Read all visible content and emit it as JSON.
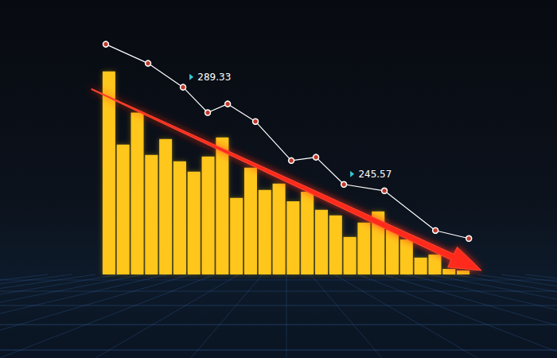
{
  "chart_data": {
    "type": "bar",
    "categories": [
      null,
      null,
      null,
      null,
      null,
      null,
      null,
      null,
      null,
      null,
      null,
      null,
      null,
      null,
      null,
      null,
      null,
      null,
      null,
      null,
      null,
      null,
      null,
      null,
      null,
      null
    ],
    "xlim": [
      0,
      26
    ],
    "ylim": [
      205,
      315
    ],
    "tick_labels": false,
    "grid": false,
    "series": [
      {
        "type": "bar",
        "color": "#ffc61a",
        "values": [
          296.5,
          263.5,
          277.9,
          258.8,
          266.0,
          256.0,
          251.3,
          258.1,
          266.7,
          239.5,
          253.1,
          243.1,
          245.9,
          238.0,
          242.3,
          234.1,
          231.6,
          221.9,
          228.4,
          233.4,
          225.1,
          220.8,
          212.6,
          214.0,
          207.5,
          206.8
        ]
      },
      {
        "type": "line",
        "color": "#ffffff",
        "marker": "circle",
        "line_style": "solid",
        "x": [
          0.28,
          3.26,
          5.73,
          7.47,
          8.88,
          10.84,
          13.37,
          15.11,
          17.08,
          19.94,
          23.54,
          25.9
        ],
        "values": [
          308.7,
          300.1,
          289.33,
          277.9,
          281.8,
          273.9,
          256.3,
          257.8,
          245.57,
          242.7,
          224.8,
          221.2
        ],
        "value_labels": [
          null,
          null,
          "289.33",
          null,
          null,
          null,
          null,
          null,
          "245.57",
          null,
          null,
          null
        ]
      }
    ]
  }
}
